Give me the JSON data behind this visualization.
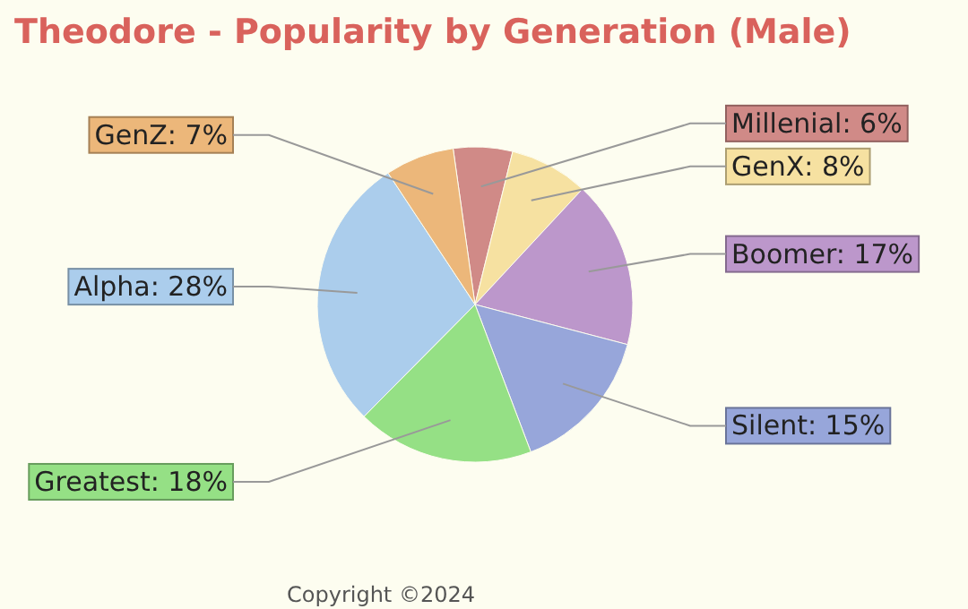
{
  "chart_data": {
    "type": "pie",
    "title": "Theodore - Popularity by Generation (Male)",
    "categories": [
      "Millenial",
      "GenX",
      "Boomer",
      "Silent",
      "Greatest",
      "Alpha",
      "GenZ"
    ],
    "values": [
      6,
      8,
      17,
      15,
      18,
      28,
      7
    ],
    "value_labels": [
      "6%",
      "8%",
      "17%",
      "15%",
      "18%",
      "28%",
      "7%"
    ],
    "colors": [
      "#d08a87",
      "#f6e1a1",
      "#bc97cb",
      "#97a6da",
      "#95e085",
      "#abcdec",
      "#ecb77a"
    ],
    "annotations": [
      "Copyright ©2024"
    ]
  }
}
